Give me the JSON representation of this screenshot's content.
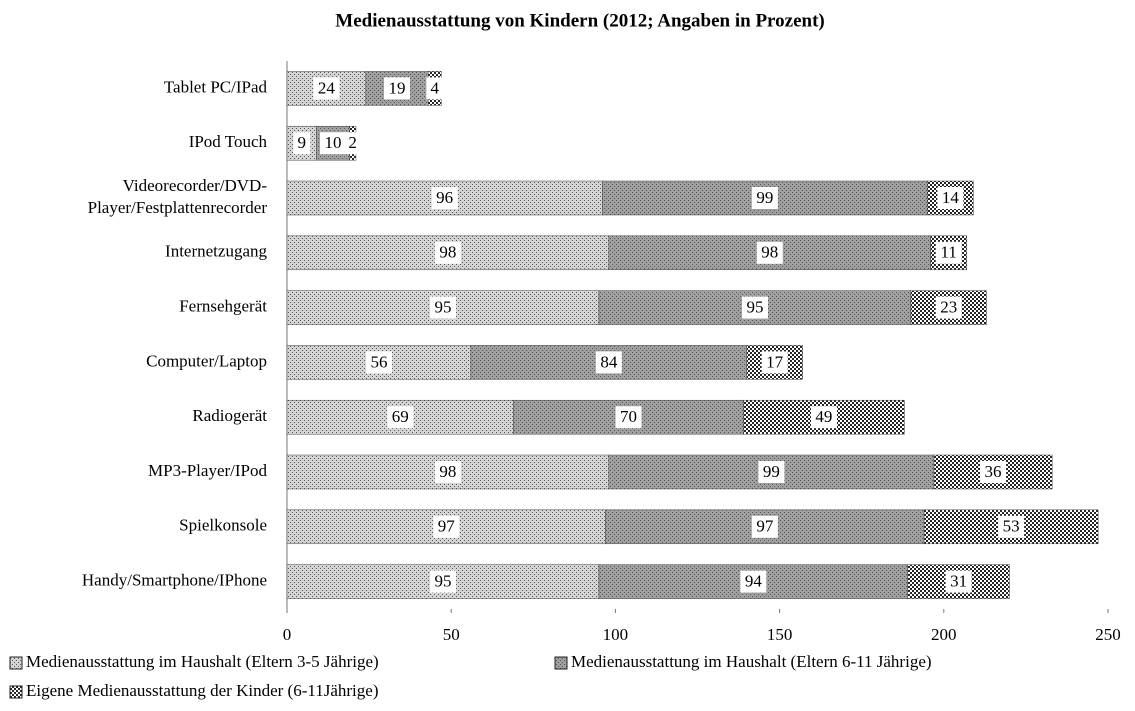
{
  "chart_data": {
    "type": "stacked_bar",
    "orientation": "horizontal",
    "title": "Medienausstattung von Kindern (2012; Angaben in Prozent)",
    "categories": [
      "Tablet PC/IPad",
      "IPod Touch",
      "Videorecorder/DVD-Player/Festplattenrecorder",
      "Internetzugang",
      "Fernsehgerät",
      "Computer/Laptop",
      "Radiogerät",
      "MP3-Player/IPod",
      "Spielkonsole",
      "Handy/Smartphone/IPhone"
    ],
    "series": [
      {
        "name": "Medienausstattung im Haushalt (Eltern 3-5 Jährige)",
        "color": "#d4d4d4",
        "values": [
          24,
          9,
          96,
          98,
          95,
          56,
          69,
          98,
          97,
          95
        ]
      },
      {
        "name": "Medienausstattung im Haushalt (Eltern 6-11 Jährige)",
        "color": "#a0a0a0",
        "values": [
          19,
          10,
          99,
          98,
          95,
          84,
          70,
          99,
          97,
          94
        ]
      },
      {
        "name": "Eigene Medienausstattung der Kinder (6-11Jährige)",
        "color": "#262626",
        "values": [
          4,
          2,
          14,
          11,
          23,
          17,
          49,
          36,
          53,
          31
        ]
      }
    ],
    "xlim": [
      0,
      250
    ],
    "xticks": [
      0,
      50,
      100,
      150,
      200,
      250
    ],
    "legend": "bottom-left"
  }
}
